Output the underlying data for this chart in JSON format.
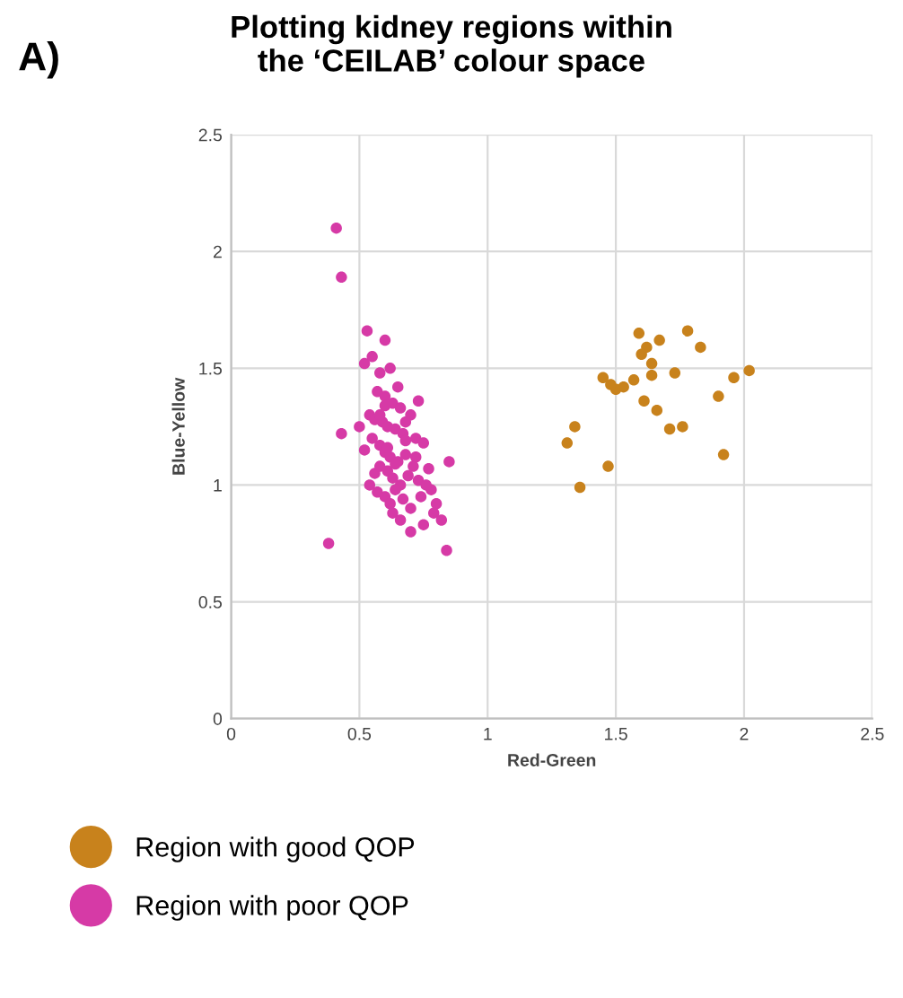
{
  "chart_data": {
    "type": "scatter",
    "title": "Plotting kidney regions within\nthe ‘CEILAB’ colour space",
    "xlabel": "Red-Green",
    "ylabel": "Blue-Yellow",
    "annotations": [
      "A)"
    ],
    "xlim": [
      0,
      2.5
    ],
    "ylim": [
      0,
      2.5
    ],
    "xticks": [
      0,
      0.5,
      1,
      1.5,
      2,
      2.5
    ],
    "yticks": [
      0,
      0.5,
      1,
      1.5,
      2,
      2.5
    ],
    "grid": true,
    "legend": "bottom",
    "marker": "circle",
    "series": [
      {
        "name": "Region with good QOP",
        "color": "#c8821c",
        "x": [
          1.59,
          1.67,
          1.78,
          1.83,
          1.62,
          1.6,
          1.64,
          1.64,
          1.45,
          1.5,
          1.48,
          1.53,
          1.57,
          1.73,
          1.96,
          2.02,
          1.9,
          1.61,
          1.66,
          1.76,
          1.71,
          1.34,
          1.31,
          1.47,
          1.92,
          1.36
        ],
        "values": [
          1.65,
          1.62,
          1.66,
          1.59,
          1.59,
          1.56,
          1.52,
          1.47,
          1.46,
          1.41,
          1.43,
          1.42,
          1.45,
          1.48,
          1.46,
          1.49,
          1.38,
          1.36,
          1.32,
          1.25,
          1.24,
          1.25,
          1.18,
          1.08,
          1.13,
          0.99
        ]
      },
      {
        "name": "Region with poor QOP",
        "color": "#d63aa6",
        "x": [
          0.41,
          0.43,
          0.53,
          0.6,
          0.43,
          0.5,
          0.38,
          0.52,
          0.55,
          0.58,
          0.62,
          0.65,
          0.57,
          0.6,
          0.63,
          0.66,
          0.7,
          0.54,
          0.56,
          0.59,
          0.61,
          0.64,
          0.67,
          0.72,
          0.75,
          0.52,
          0.55,
          0.58,
          0.6,
          0.62,
          0.65,
          0.68,
          0.71,
          0.56,
          0.58,
          0.61,
          0.63,
          0.66,
          0.69,
          0.73,
          0.78,
          0.54,
          0.57,
          0.6,
          0.62,
          0.64,
          0.67,
          0.7,
          0.74,
          0.8,
          0.85,
          0.58,
          0.61,
          0.64,
          0.68,
          0.72,
          0.76,
          0.79,
          0.82,
          0.63,
          0.66,
          0.7,
          0.75,
          0.84,
          0.6,
          0.68,
          0.73,
          0.77
        ],
        "values": [
          2.1,
          1.89,
          1.66,
          1.62,
          1.22,
          1.25,
          0.75,
          1.52,
          1.55,
          1.48,
          1.5,
          1.42,
          1.4,
          1.38,
          1.35,
          1.33,
          1.3,
          1.3,
          1.28,
          1.27,
          1.25,
          1.24,
          1.22,
          1.2,
          1.18,
          1.15,
          1.2,
          1.17,
          1.14,
          1.12,
          1.1,
          1.13,
          1.08,
          1.05,
          1.08,
          1.06,
          1.03,
          1.0,
          1.04,
          1.02,
          0.98,
          1.0,
          0.97,
          0.95,
          0.92,
          0.98,
          0.94,
          0.9,
          0.95,
          0.92,
          1.1,
          1.3,
          1.16,
          1.09,
          1.19,
          1.12,
          1.0,
          0.88,
          0.85,
          0.88,
          0.85,
          0.8,
          0.83,
          0.72,
          1.34,
          1.27,
          1.36,
          1.07
        ]
      }
    ]
  }
}
